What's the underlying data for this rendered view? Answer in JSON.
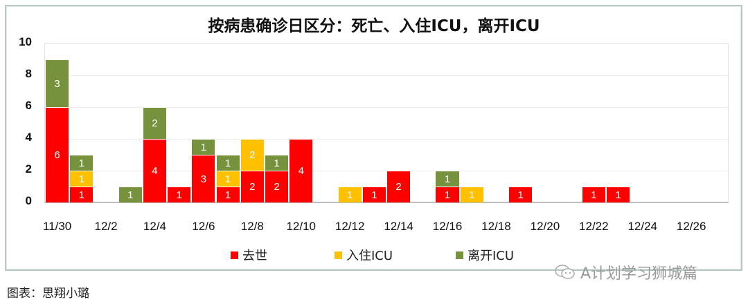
{
  "chart_data": {
    "type": "bar",
    "stacked": true,
    "title": "按病患确诊日区分：死亡、入住ICU，离开ICU",
    "xlabel": "",
    "ylabel": "",
    "ylim": [
      0,
      10
    ],
    "yticks": [
      "0",
      "2",
      "4",
      "6",
      "8",
      "10"
    ],
    "xtick_labels": [
      "11/30",
      "12/2",
      "12/4",
      "12/6",
      "12/8",
      "12/10",
      "12/12",
      "12/14",
      "12/16",
      "12/18",
      "12/20",
      "12/22",
      "12/24",
      "12/26"
    ],
    "categories": [
      "11/30",
      "12/1",
      "12/2",
      "12/3",
      "12/4",
      "12/5",
      "12/6",
      "12/7",
      "12/8",
      "12/9",
      "12/10",
      "12/11",
      "12/12",
      "12/13",
      "12/14",
      "12/15",
      "12/16",
      "12/17",
      "12/18",
      "12/19",
      "12/20",
      "12/21",
      "12/22",
      "12/23",
      "12/24",
      "12/25",
      "12/26",
      "12/27"
    ],
    "series": [
      {
        "name": "去世",
        "color": "#ff0000",
        "values": [
          6,
          1,
          0,
          0,
          4,
          1,
          3,
          1,
          2,
          2,
          4,
          0,
          0,
          1,
          2,
          0,
          1,
          0,
          0,
          1,
          0,
          0,
          1,
          1,
          0,
          0,
          0,
          0
        ]
      },
      {
        "name": "入住ICU",
        "color": "#ffc000",
        "values": [
          0,
          1,
          0,
          0,
          0,
          0,
          0,
          1,
          2,
          0,
          0,
          0,
          1,
          0,
          0,
          0,
          0,
          1,
          0,
          0,
          0,
          0,
          0,
          0,
          0,
          0,
          0,
          0
        ]
      },
      {
        "name": "离开ICU",
        "color": "#76923c",
        "values": [
          3,
          1,
          0,
          1,
          2,
          0,
          1,
          1,
          0,
          1,
          0,
          0,
          0,
          0,
          0,
          0,
          1,
          0,
          0,
          0,
          0,
          0,
          0,
          0,
          0,
          0,
          0,
          0
        ]
      }
    ],
    "grid": true,
    "legend_position": "bottom",
    "data_labels": true
  },
  "legend": [
    {
      "label": "去世",
      "color": "#ff0000"
    },
    {
      "label": "入住ICU",
      "color": "#ffc000"
    },
    {
      "label": "离开ICU",
      "color": "#76923c"
    }
  ],
  "caption": "图表：思翔小璐",
  "watermark": "A计划学习狮城篇"
}
